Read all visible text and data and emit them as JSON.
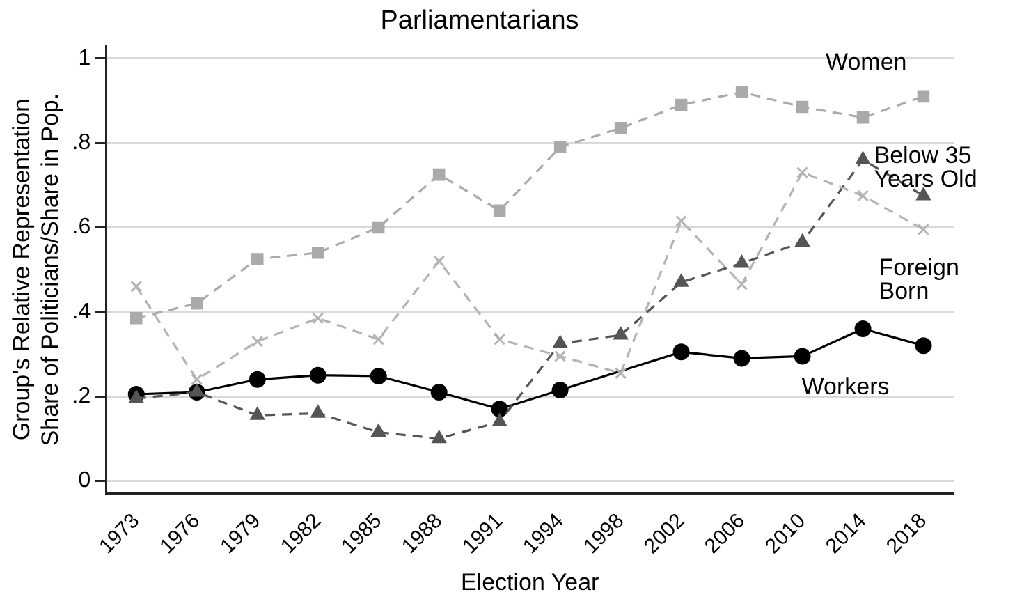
{
  "chart_data": {
    "type": "line",
    "title": "Parliamentarians",
    "xlabel": "Election Year",
    "ylabel": "Group's Relative Representation\nShare of Politicians/Share in Pop.",
    "categories": [
      "1973",
      "1976",
      "1979",
      "1982",
      "1985",
      "1988",
      "1991",
      "1994",
      "1998",
      "2002",
      "2006",
      "2010",
      "2014",
      "2018"
    ],
    "ylim": [
      -0.03,
      1.03
    ],
    "yticks": [
      {
        "value": 0,
        "label": "0"
      },
      {
        "value": 0.2,
        "label": ".2"
      },
      {
        "value": 0.4,
        "label": ".4"
      },
      {
        "value": 0.6,
        "label": ".6"
      },
      {
        "value": 0.8,
        "label": ".8"
      },
      {
        "value": 1,
        "label": "1"
      }
    ],
    "grid": "y",
    "legend": false,
    "series": [
      {
        "name": "Women",
        "color": "#aaaaaa",
        "marker": "square",
        "line_style": "dashed",
        "values": [
          0.385,
          0.42,
          0.525,
          0.54,
          0.6,
          0.725,
          0.64,
          0.79,
          0.835,
          0.89,
          0.92,
          0.885,
          0.86,
          0.91
        ]
      },
      {
        "name": "Foreign\nBorn",
        "color": "#b4b4b4",
        "marker": "cross",
        "line_style": "dashed",
        "values": [
          0.46,
          0.24,
          0.33,
          0.385,
          0.335,
          0.52,
          0.335,
          0.295,
          0.255,
          0.615,
          0.465,
          0.73,
          0.675,
          0.595
        ]
      },
      {
        "name": "Below 35\nYears Old",
        "color": "#555555",
        "marker": "triangle",
        "line_style": "dashed",
        "values": [
          0.195,
          0.21,
          0.155,
          0.16,
          0.115,
          0.1,
          0.14,
          0.325,
          0.345,
          0.47,
          0.515,
          0.565,
          0.76,
          0.675
        ]
      },
      {
        "name": "Workers",
        "color": "#000000",
        "marker": "circle",
        "line_style": "solid",
        "values": [
          0.205,
          0.21,
          0.24,
          0.25,
          0.248,
          0.21,
          0.17,
          0.215,
          null,
          0.305,
          0.29,
          0.295,
          0.36,
          0.32
        ]
      }
    ]
  }
}
